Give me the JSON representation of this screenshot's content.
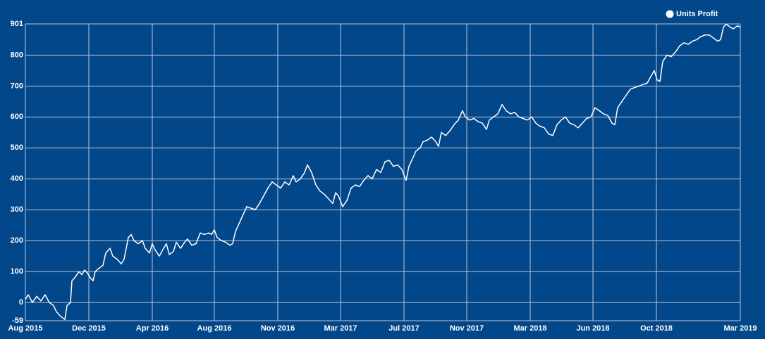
{
  "chart_data": {
    "type": "line",
    "x": [
      0,
      4,
      10,
      16,
      22,
      28,
      34,
      40,
      44,
      50,
      56,
      59,
      64,
      66,
      70,
      76,
      80,
      84,
      88,
      92,
      96,
      99,
      104,
      110,
      114,
      120,
      124,
      130,
      136,
      140,
      146,
      150,
      154,
      160,
      166,
      170,
      176,
      180,
      184,
      190,
      196,
      200,
      204,
      210,
      214,
      220,
      226,
      230,
      236,
      242,
      248,
      254,
      260,
      264,
      268,
      272,
      278,
      284,
      290,
      294,
      298,
      304,
      310,
      314,
      320,
      326,
      332,
      338,
      344,
      350,
      356,
      362,
      368,
      374,
      380,
      384,
      390,
      396,
      400,
      406,
      412,
      418,
      424,
      430,
      436,
      440,
      444,
      450,
      456,
      462,
      468,
      474,
      480,
      486,
      492,
      498,
      504,
      510,
      516,
      522,
      528,
      534,
      540,
      544,
      550,
      554,
      560,
      564,
      570,
      576,
      582,
      586,
      590,
      596,
      602,
      608,
      614,
      620,
      624,
      630,
      636,
      642,
      648,
      654,
      658,
      664,
      670,
      676,
      682,
      688,
      694,
      700,
      706,
      712,
      718,
      724,
      730,
      736,
      742,
      748,
      754,
      760,
      766,
      772,
      778,
      784,
      790,
      796,
      802,
      808,
      814,
      820,
      826,
      832,
      836,
      840,
      846,
      852,
      858,
      864,
      870,
      876,
      882,
      888,
      892,
      896,
      900,
      904,
      910,
      916,
      922,
      928,
      934,
      940,
      946,
      952,
      958,
      964,
      970,
      976,
      982,
      986,
      990,
      994,
      1000,
      1004,
      1010,
      1014
    ],
    "series": [
      {
        "name": "Units Profit",
        "color": "#ffffff",
        "values": [
          10,
          25,
          0,
          20,
          5,
          25,
          0,
          -10,
          -30,
          -45,
          -55,
          -10,
          0,
          70,
          80,
          100,
          90,
          105,
          95,
          80,
          70,
          100,
          110,
          120,
          160,
          175,
          150,
          140,
          125,
          140,
          210,
          220,
          200,
          190,
          200,
          175,
          160,
          190,
          170,
          150,
          175,
          190,
          155,
          165,
          195,
          175,
          195,
          205,
          185,
          190,
          225,
          220,
          225,
          220,
          235,
          210,
          200,
          195,
          185,
          190,
          230,
          260,
          290,
          310,
          305,
          300,
          320,
          345,
          370,
          390,
          380,
          370,
          390,
          380,
          410,
          390,
          400,
          420,
          445,
          420,
          380,
          360,
          350,
          335,
          320,
          355,
          345,
          310,
          330,
          370,
          380,
          375,
          395,
          410,
          400,
          430,
          420,
          455,
          460,
          440,
          445,
          430,
          395,
          440,
          470,
          490,
          500,
          520,
          525,
          535,
          520,
          505,
          550,
          540,
          555,
          575,
          590,
          620,
          600,
          590,
          595,
          585,
          580,
          560,
          590,
          600,
          610,
          640,
          620,
          610,
          615,
          600,
          595,
          590,
          600,
          580,
          570,
          565,
          545,
          540,
          575,
          590,
          600,
          580,
          575,
          565,
          580,
          595,
          600,
          630,
          620,
          610,
          605,
          580,
          575,
          630,
          650,
          670,
          690,
          695,
          700,
          705,
          710,
          735,
          750,
          720,
          715,
          780,
          800,
          795,
          810,
          830,
          840,
          835,
          845,
          850,
          860,
          865,
          865,
          855,
          845,
          850,
          890,
          900,
          890,
          885,
          895,
          890
        ]
      }
    ],
    "xlim": [
      0,
      1014
    ],
    "xticks": [
      {
        "value": 0,
        "label": "Aug 2015"
      },
      {
        "value": 90,
        "label": "Dec 2015"
      },
      {
        "value": 180,
        "label": "Apr 2016"
      },
      {
        "value": 268,
        "label": "Aug 2016"
      },
      {
        "value": 358,
        "label": "Nov 2016"
      },
      {
        "value": 447,
        "label": "Mar 2017"
      },
      {
        "value": 537,
        "label": "Jul 2017"
      },
      {
        "value": 626,
        "label": "Nov 2017"
      },
      {
        "value": 716,
        "label": "Mar 2018"
      },
      {
        "value": 805,
        "label": "Jun 2018"
      },
      {
        "value": 895,
        "label": "Oct 2018"
      },
      {
        "value": 1014,
        "label": "Mar 2019"
      }
    ],
    "ylim": [
      -59,
      901
    ],
    "yticks": [
      -59,
      0,
      100,
      200,
      300,
      400,
      500,
      600,
      700,
      800,
      901
    ],
    "grid": true,
    "legend": "top-right"
  }
}
